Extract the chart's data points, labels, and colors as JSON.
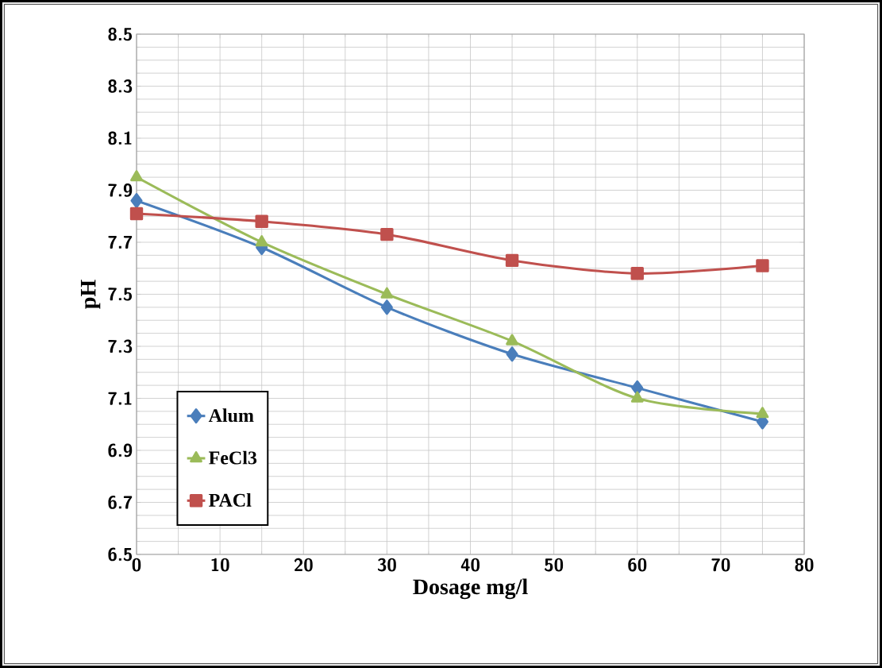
{
  "chart_data": {
    "type": "line",
    "xlabel": "Dosage mg/l",
    "ylabel": "pH",
    "x": [
      0,
      15,
      30,
      45,
      60,
      75
    ],
    "series": [
      {
        "name": "Alum",
        "color": "#4a7ebb",
        "marker": "diamond",
        "values": [
          7.86,
          7.68,
          7.45,
          7.27,
          7.14,
          7.01
        ]
      },
      {
        "name": "FeCl3",
        "color": "#9bbb59",
        "marker": "triangle",
        "values": [
          7.95,
          7.7,
          7.5,
          7.32,
          7.1,
          7.04
        ]
      },
      {
        "name": "PACl",
        "color": "#c0504d",
        "marker": "square",
        "values": [
          7.81,
          7.78,
          7.73,
          7.63,
          7.58,
          7.61
        ]
      }
    ],
    "xlim": [
      0,
      80
    ],
    "xticks": [
      0,
      10,
      20,
      30,
      40,
      50,
      60,
      70,
      80
    ],
    "ylim": [
      6.5,
      8.5
    ],
    "yticks": [
      6.5,
      6.7,
      6.9,
      7.1,
      7.3,
      7.5,
      7.7,
      7.9,
      8.1,
      8.3,
      8.5
    ],
    "grid": true,
    "legend": "bottom left"
  }
}
